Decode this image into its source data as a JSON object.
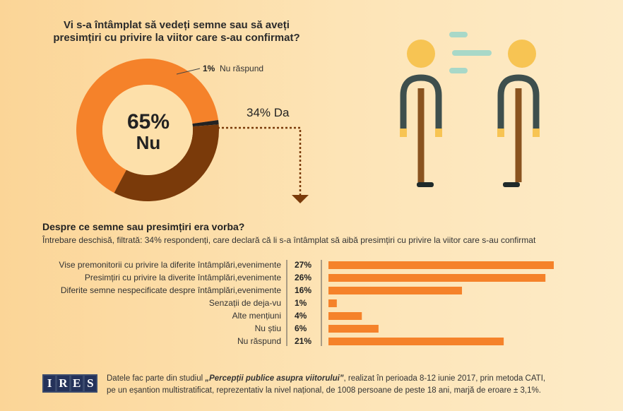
{
  "colors": {
    "orange": "#f5822a",
    "brown": "#7a3a0a",
    "dark": "#222222",
    "skin": "#f7c453",
    "figure": "#3e4f4d",
    "leg": "#8a531f",
    "speech": "#a8d8c8"
  },
  "header": {
    "question": "Vi s-a întâmplat să vedeți semne sau să aveți presimțiri cu privire la viitor care s-au confirmat?"
  },
  "donut": {
    "center_pct": "65%",
    "center_label": "Nu",
    "nr_pct": "1%",
    "nr_label": "Nu răspund",
    "da_label": "34% Da"
  },
  "section2": {
    "title": "Despre ce semne sau presimțiri era vorba?",
    "subtitle": "Întrebare deschisă, filtrată: 34% respondenți, care declară că li s-a întâmplat să aibă presimțiri cu privire la viitor care s-au confirmat"
  },
  "chart_data": [
    {
      "type": "pie",
      "title": "Vi s-a întâmplat să vedeți semne sau să aveți presimțiri cu privire la viitor care s-au confirmat?",
      "categories": [
        "Nu",
        "Da",
        "Nu răspund"
      ],
      "values": [
        65,
        34,
        1
      ],
      "colors": [
        "#f5822a",
        "#7a3a0a",
        "#222222"
      ]
    },
    {
      "type": "bar",
      "orientation": "horizontal",
      "title": "Despre ce semne sau presimțiri era vorba?",
      "categories": [
        "Vise premonitorii cu privire la diferite întâmplări,evenimente",
        "Presimțiri cu privire la diverite întâmplări,evenimente",
        "Diferite semne nespecificate despre întâmplări,evenimente",
        "Senzații de deja-vu",
        "Alte mențiuni",
        "Nu știu",
        "Nu răspund"
      ],
      "values": [
        27,
        26,
        16,
        1,
        4,
        6,
        21
      ],
      "value_labels": [
        "27%",
        "26%",
        "16%",
        "1%",
        "4%",
        "6%",
        "21%"
      ],
      "xlim": [
        0,
        27
      ],
      "grid": false
    }
  ],
  "footer": {
    "logo_letters": [
      "I",
      "R",
      "E",
      "S"
    ],
    "line1_pre": "Datele fac parte din studiul ",
    "line1_study": "„Percepții publice asupra viitorului”",
    "line1_post": ", realizat în perioada 8-12 iunie 2017, prin metoda CATI,",
    "line2": "pe un eșantion multistratificat, reprezentativ la nivel național, de 1008 persoane de peste 18 ani, marjă de eroare ± 3,1%."
  }
}
